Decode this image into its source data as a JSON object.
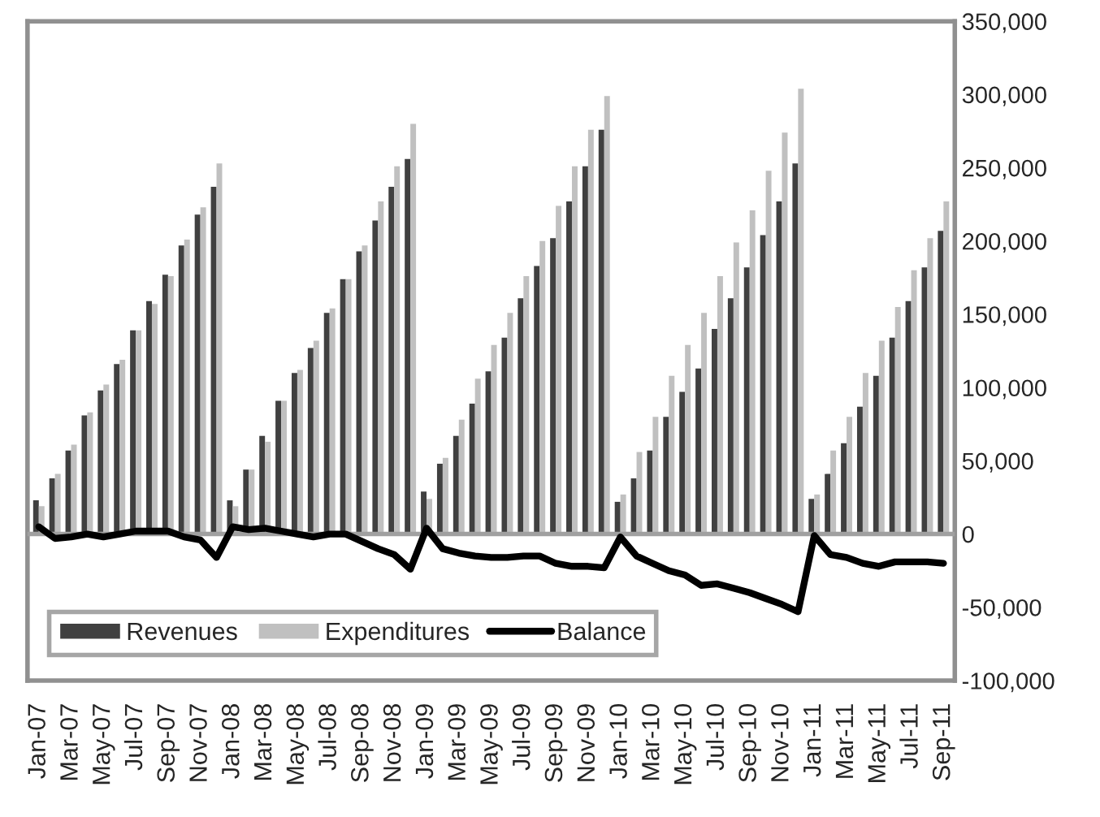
{
  "chart_data": {
    "type": "bar",
    "categories": [
      "Jan-07",
      null,
      "Mar-07",
      null,
      "May-07",
      null,
      "Jul-07",
      null,
      "Sep-07",
      null,
      "Nov-07",
      null,
      "Jan-08",
      null,
      "Mar-08",
      null,
      "May-08",
      null,
      "Jul-08",
      null,
      "Sep-08",
      null,
      "Nov-08",
      null,
      "Jan-09",
      null,
      "Mar-09",
      null,
      "May-09",
      null,
      "Jul-09",
      null,
      "Sep-09",
      null,
      "Nov-09",
      null,
      "Jan-10",
      null,
      "Mar-10",
      null,
      "May-10",
      null,
      "Jul-10",
      null,
      "Sep-10",
      null,
      "Nov-10",
      null,
      "Jan-11",
      null,
      "Mar-11",
      null,
      "May-11",
      null,
      "Jul-11",
      null,
      "Sep-11"
    ],
    "series": [
      {
        "name": "Revenues",
        "color": "#404040",
        "values": [
          23000,
          38000,
          57000,
          81000,
          98000,
          116000,
          139000,
          159000,
          177000,
          197000,
          218000,
          237000,
          23000,
          44000,
          67000,
          91000,
          110000,
          127000,
          151000,
          174000,
          193000,
          214000,
          237000,
          256000,
          29000,
          48000,
          67000,
          89000,
          111000,
          134000,
          161000,
          183000,
          202000,
          227000,
          251000,
          276000,
          22000,
          38000,
          57000,
          80000,
          97000,
          113000,
          140000,
          161000,
          182000,
          204000,
          227000,
          253000,
          24000,
          41000,
          62000,
          87000,
          108000,
          134000,
          159000,
          182000,
          207000
        ]
      },
      {
        "name": "Expenditures",
        "color": "#c0c0c0",
        "values": [
          19000,
          41000,
          61000,
          83000,
          102000,
          119000,
          139000,
          157000,
          176000,
          201000,
          223000,
          253000,
          19000,
          44000,
          63000,
          91000,
          112000,
          132000,
          154000,
          174000,
          197000,
          227000,
          251000,
          280000,
          24000,
          52000,
          78000,
          106000,
          129000,
          151000,
          176000,
          200000,
          224000,
          251000,
          276000,
          299000,
          27000,
          56000,
          80000,
          108000,
          129000,
          151000,
          176000,
          199000,
          221000,
          248000,
          274000,
          304000,
          27000,
          57000,
          80000,
          110000,
          132000,
          155000,
          180000,
          202000,
          227000
        ]
      },
      {
        "name": "Balance",
        "type": "line",
        "color": "#000000",
        "values": [
          5000,
          -3000,
          -2000,
          0,
          -2000,
          0,
          2000,
          2000,
          2000,
          -2000,
          -4000,
          -16000,
          5000,
          3000,
          4000,
          2000,
          0,
          -2000,
          0,
          0,
          -5000,
          -10000,
          -14000,
          -24000,
          4000,
          -10000,
          -13000,
          -15000,
          -16000,
          -16000,
          -15000,
          -15000,
          -20000,
          -22000,
          -22000,
          -23000,
          -2000,
          -15000,
          -20000,
          -25000,
          -28000,
          -35000,
          -34000,
          -37000,
          -40000,
          -44000,
          -48000,
          -53000,
          -1000,
          -14000,
          -16000,
          -20000,
          -22000,
          -19000,
          -19000,
          -19000,
          -20000
        ]
      }
    ],
    "ylim": [
      -100000,
      350000
    ],
    "yticks": [
      {
        "value": -100000,
        "label": "-100,000"
      },
      {
        "value": -50000,
        "label": "-50,000"
      },
      {
        "value": 0,
        "label": "0"
      },
      {
        "value": 50000,
        "label": "50,000"
      },
      {
        "value": 100000,
        "label": "100,000"
      },
      {
        "value": 150000,
        "label": "150,000"
      },
      {
        "value": 200000,
        "label": "200,000"
      },
      {
        "value": 250000,
        "label": "250,000"
      },
      {
        "value": 300000,
        "label": "300,000"
      },
      {
        "value": 350000,
        "label": "350,000"
      }
    ],
    "ref_lines": [
      {
        "axis": "y",
        "value": 0,
        "color": "#a0a0a0"
      }
    ],
    "grid": false,
    "legend": "bottom left"
  }
}
